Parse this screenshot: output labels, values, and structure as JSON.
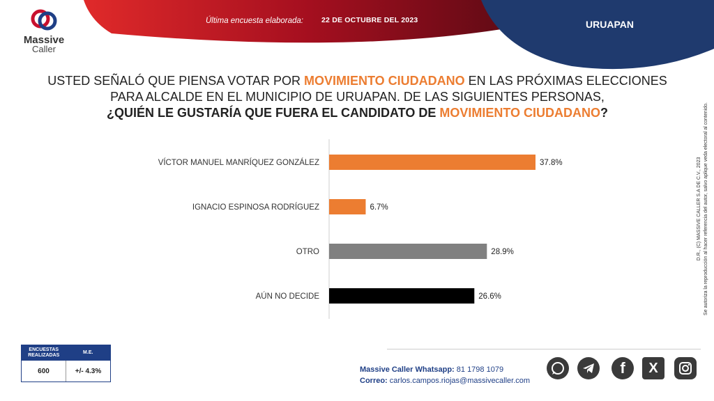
{
  "header": {
    "brand_line1": "Massive",
    "brand_line2": "Caller",
    "survey_label": "Última encuesta elaborada:",
    "survey_date": "22 DE OCTUBRE DEL 2023",
    "city": "URUAPAN"
  },
  "question": {
    "line1_a": "USTED SEÑALÓ QUE PIENSA VOTAR POR ",
    "line1_b": "MOVIMIENTO CIUDADANO",
    "line1_c": " EN LAS PRÓXIMAS ELECCIONES",
    "line2": "PARA ALCALDE EN EL MUNICIPIO DE URUAPAN.  DE LAS SIGUIENTES PERSONAS,",
    "line3_a": "¿QUIÉN LE GUSTARÍA QUE FUERA EL CANDIDATO DE ",
    "line3_b": "MOVIMIENTO CIUDADANO",
    "line3_c": "?"
  },
  "chart_data": {
    "type": "bar",
    "orientation": "horizontal",
    "categories": [
      "VÍCTOR MANUEL MANRÍQUEZ GONZÁLEZ",
      "IGNACIO ESPINOSA RODRÍGUEZ",
      "OTRO",
      "AÚN NO DECIDE"
    ],
    "values": [
      37.8,
      6.7,
      28.9,
      26.6
    ],
    "value_labels": [
      "37.8%",
      "6.7%",
      "28.9%",
      "26.6%"
    ],
    "colors": [
      "#ec7d31",
      "#ec7d31",
      "#808080",
      "#000000"
    ],
    "xlim": [
      0,
      45
    ]
  },
  "side_note": {
    "line1": "D.R., (C) MASSIVE CALLER S.A DE C.V., 2023",
    "line2": "Se autoriza la reproducción al hacer referencia del autor, salvo aplique veda electoral al contenido."
  },
  "stats": {
    "col1_header": "ENCUESTAS REALIZADAS",
    "col2_header": "M.E.",
    "col1_value": "600",
    "col2_value": "+/- 4.3%"
  },
  "footer": {
    "whatsapp_label": "Massive Caller Whatsapp:",
    "whatsapp_number": " 81 1798 1079",
    "email_label": "Correo:",
    "email": " carlos.campos.riojas@massivecaller.com"
  },
  "social_icons": [
    "whatsapp-icon",
    "telegram-icon",
    "facebook-icon",
    "x-icon",
    "instagram-icon"
  ],
  "colors": {
    "accent": "#ec7d31",
    "navy": "#1f3f86",
    "red": "#b01226"
  }
}
